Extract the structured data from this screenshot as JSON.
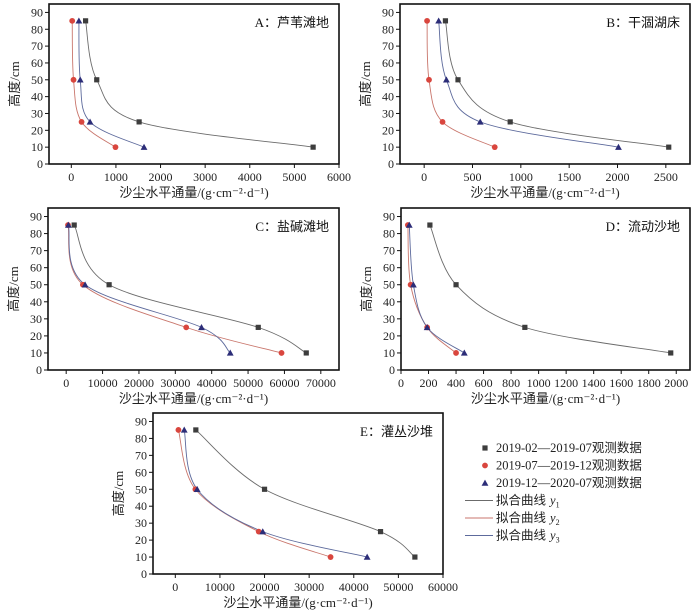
{
  "chart_data": {
    "type": "scatter",
    "series_styles": {
      "obs1": {
        "marker": "square",
        "color": "#3d3d3d"
      },
      "obs2": {
        "marker": "circle",
        "color": "#d9463e"
      },
      "obs3": {
        "marker": "triangle",
        "color": "#2c2d78"
      },
      "fit1": {
        "color": "#6b6b6b"
      },
      "fit2": {
        "color": "#c9766c"
      },
      "fit3": {
        "color": "#5d6a9c"
      }
    },
    "legend": {
      "placement": "bottom-right",
      "entries": [
        {
          "key": "obs1",
          "label": "2019-02—2019-07观测数据"
        },
        {
          "key": "obs2",
          "label": "2019-07—2019-12观测数据"
        },
        {
          "key": "obs3",
          "label": "2019-12—2020-07观测数据"
        },
        {
          "key": "fit1",
          "label": "拟合曲线",
          "var": "y",
          "sub": "1"
        },
        {
          "key": "fit2",
          "label": "拟合曲线",
          "var": "y",
          "sub": "2"
        },
        {
          "key": "fit3",
          "label": "拟合曲线",
          "var": "y",
          "sub": "3"
        }
      ]
    },
    "panels": [
      {
        "id": "A",
        "title": "A：芦苇滩地",
        "xlabel": "沙尘水平通量/(g·cm⁻²·d⁻¹)",
        "ylabel": "高度/cm",
        "xlim": [
          -500,
          6000
        ],
        "ylim": [
          0,
          95
        ],
        "xticks": [
          0,
          1000,
          2000,
          3000,
          4000,
          5000,
          6000
        ],
        "yticks": [
          0,
          10,
          20,
          30,
          40,
          50,
          60,
          70,
          80,
          90
        ],
        "heights": [
          85,
          50,
          25,
          10
        ],
        "series": [
          {
            "key": "obs1",
            "fit": "fit1",
            "x": [
              320,
              570,
              1520,
              5420
            ]
          },
          {
            "key": "obs2",
            "fit": "fit2",
            "x": [
              20,
              50,
              230,
              990
            ]
          },
          {
            "key": "obs3",
            "fit": "fit3",
            "x": [
              170,
              200,
              420,
              1630
            ]
          }
        ]
      },
      {
        "id": "B",
        "title": "B：干涸湖床",
        "xlabel": "沙尘水平通量/(g·cm⁻²·d⁻¹)",
        "ylabel": "高度/cm",
        "xlim": [
          -250,
          2750
        ],
        "ylim": [
          0,
          95
        ],
        "xticks": [
          0,
          500,
          1000,
          1500,
          2000,
          2500
        ],
        "yticks": [
          0,
          10,
          20,
          30,
          40,
          50,
          60,
          70,
          80,
          90
        ],
        "heights": [
          85,
          50,
          25,
          10
        ],
        "series": [
          {
            "key": "obs1",
            "fit": "fit1",
            "x": [
              220,
              350,
              890,
              2530
            ]
          },
          {
            "key": "obs2",
            "fit": "fit2",
            "x": [
              30,
              50,
              190,
              730
            ]
          },
          {
            "key": "obs3",
            "fit": "fit3",
            "x": [
              150,
              230,
              580,
              2010
            ]
          }
        ]
      },
      {
        "id": "C",
        "title": "C：盐碱滩地",
        "xlabel": "沙尘水平通量/(g·cm⁻²·d⁻¹)",
        "ylabel": "高度/cm",
        "xlim": [
          -5000,
          75000
        ],
        "ylim": [
          0,
          95
        ],
        "xticks": [
          0,
          10000,
          20000,
          30000,
          40000,
          50000,
          60000,
          70000
        ],
        "yticks": [
          0,
          10,
          20,
          30,
          40,
          50,
          60,
          70,
          80,
          90
        ],
        "heights": [
          85,
          50,
          25,
          10
        ],
        "series": [
          {
            "key": "obs1",
            "fit": "fit1",
            "x": [
              2200,
              11800,
              52800,
              66000
            ]
          },
          {
            "key": "obs2",
            "fit": "fit2",
            "x": [
              500,
              4600,
              33000,
              59200
            ]
          },
          {
            "key": "obs3",
            "fit": "fit3",
            "x": [
              600,
              5200,
              37200,
              45100
            ]
          }
        ]
      },
      {
        "id": "D",
        "title": "D：流动沙地",
        "xlabel": "沙尘水平通量/(g·cm⁻²·d⁻¹)",
        "ylabel": "高度/cm",
        "xlim": [
          0,
          2100
        ],
        "ylim": [
          0,
          95
        ],
        "xticks": [
          0,
          200,
          400,
          600,
          800,
          1000,
          1200,
          1400,
          1600,
          1800,
          2000
        ],
        "yticks": [
          0,
          10,
          20,
          30,
          40,
          50,
          60,
          70,
          80,
          90
        ],
        "heights": [
          85,
          50,
          25,
          10
        ],
        "series": [
          {
            "key": "obs1",
            "fit": "fit1",
            "x": [
              210,
              400,
              900,
              1960
            ]
          },
          {
            "key": "obs2",
            "fit": "fit2",
            "x": [
              50,
              70,
              190,
              400
            ]
          },
          {
            "key": "obs3",
            "fit": "fit3",
            "x": [
              60,
              90,
              190,
              460
            ]
          }
        ]
      },
      {
        "id": "E",
        "title": "E：灌丛沙堆",
        "xlabel": "沙尘水平通量/(g·cm⁻²·d⁻¹)",
        "ylabel": "高度/cm",
        "xlim": [
          -5000,
          60000
        ],
        "ylim": [
          0,
          95
        ],
        "xticks": [
          0,
          10000,
          20000,
          30000,
          40000,
          50000,
          60000
        ],
        "yticks": [
          0,
          10,
          20,
          30,
          40,
          50,
          60,
          70,
          80,
          90
        ],
        "heights": [
          85,
          50,
          25,
          10
        ],
        "series": [
          {
            "key": "obs1",
            "fit": "fit1",
            "x": [
              4600,
              20000,
              46000,
              53700
            ]
          },
          {
            "key": "obs2",
            "fit": "fit2",
            "x": [
              700,
              4500,
              18700,
              34800
            ]
          },
          {
            "key": "obs3",
            "fit": "fit3",
            "x": [
              2000,
              4900,
              19600,
              43000
            ]
          }
        ]
      }
    ]
  }
}
